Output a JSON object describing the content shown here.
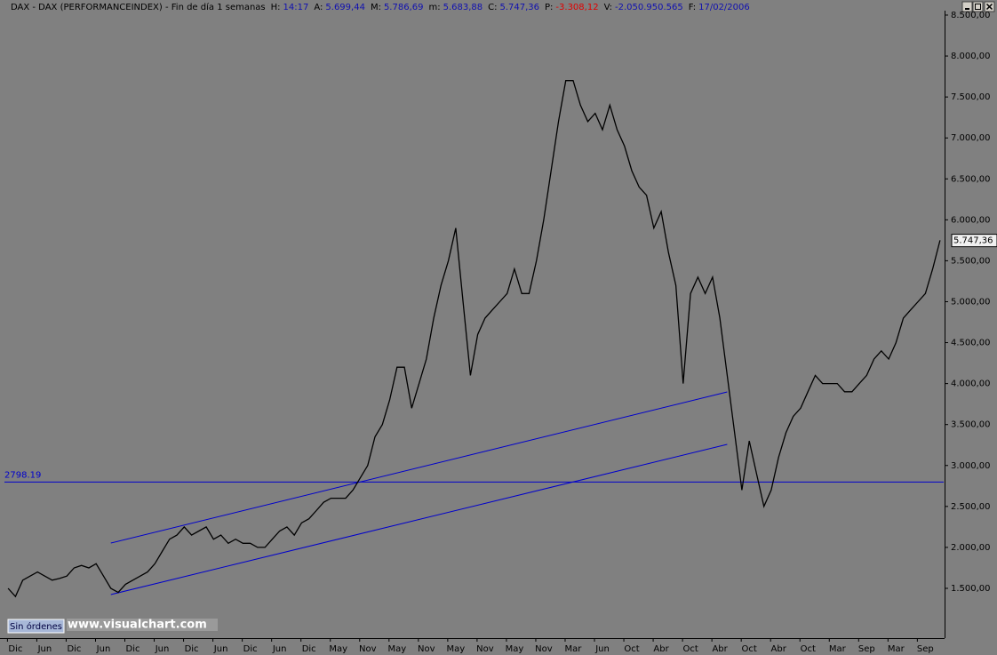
{
  "chart_data": {
    "type": "line",
    "title": "DAX - DAX (PERFORMANCEINDEX) - Fin de día 1 semanas",
    "header": [
      {
        "label": "H:",
        "value": "14:17",
        "color": "#1010b0"
      },
      {
        "label": "A:",
        "value": "5.699,44",
        "color": "#1010b0"
      },
      {
        "label": "M:",
        "value": "5.786,69",
        "color": "#1010b0"
      },
      {
        "label": "m:",
        "value": "5.683,88",
        "color": "#1010b0"
      },
      {
        "label": "C:",
        "value": "5.747,36",
        "color": "#1010b0"
      },
      {
        "label": "P:",
        "value": "-3.308,12",
        "color": "#e00000"
      },
      {
        "label": "V:",
        "value": "-2.050.950.565",
        "color": "#1010b0"
      },
      {
        "label": "F:",
        "value": "17/02/2006",
        "color": "#1010b0"
      }
    ],
    "categories": [
      null,
      "Dic",
      null,
      null,
      null,
      "Jun",
      null,
      null,
      null,
      "Dic",
      null,
      null,
      null,
      "Jun",
      null,
      null,
      null,
      "Dic",
      null,
      null,
      null,
      "Jun",
      null,
      null,
      null,
      "Dic",
      null,
      null,
      null,
      "Jun",
      null,
      null,
      null,
      "Dic",
      null,
      null,
      null,
      "Jun",
      null,
      null,
      null,
      "Dic",
      null,
      null,
      null,
      "May",
      null,
      null,
      null,
      "Nov",
      null,
      null,
      null,
      "May",
      null,
      null,
      null,
      "Nov",
      null,
      null,
      null,
      "May",
      null,
      null,
      null,
      "Nov",
      null,
      null,
      null,
      "May",
      null,
      null,
      null,
      "Nov",
      null,
      null,
      null,
      "Mar",
      null,
      null,
      null,
      "Jun",
      null,
      null,
      null,
      "Oct",
      null,
      null,
      null,
      "Abr",
      null,
      null,
      null,
      "Oct",
      null,
      null,
      null,
      "Abr",
      null,
      null,
      null,
      "Oct",
      null,
      null,
      null,
      "Abr",
      null,
      null,
      null,
      "Oct",
      null,
      null,
      null,
      "Mar",
      null,
      null,
      null,
      "Sep",
      null,
      null,
      null,
      "Mar",
      null,
      null,
      null,
      "Sep",
      null,
      null
    ],
    "series": [
      {
        "name": "DAX",
        "color": "#000000",
        "values": [
          1500,
          1400,
          1600,
          1650,
          1700,
          1650,
          1600,
          1620,
          1650,
          1750,
          1780,
          1750,
          1800,
          1650,
          1500,
          1450,
          1550,
          1600,
          1650,
          1700,
          1800,
          1950,
          2100,
          2150,
          2250,
          2150,
          2200,
          2250,
          2100,
          2150,
          2050,
          2100,
          2050,
          2050,
          2000,
          2000,
          2100,
          2200,
          2250,
          2150,
          2300,
          2350,
          2450,
          2550,
          2600,
          2600,
          2600,
          2700,
          2850,
          3000,
          3350,
          3500,
          3800,
          4200,
          4200,
          3700,
          4000,
          4300,
          4800,
          5200,
          5500,
          5900,
          5000,
          4100,
          4600,
          4800,
          4900,
          5000,
          5100,
          5400,
          5100,
          5100,
          5500,
          6000,
          6600,
          7200,
          7700,
          7700,
          7400,
          7200,
          7300,
          7100,
          7400,
          7100,
          6900,
          6600,
          6400,
          6300,
          5900,
          6100,
          5600,
          5200,
          4000,
          5100,
          5300,
          5100,
          5300,
          4800,
          4100,
          3400,
          2700,
          3300,
          2900,
          2500,
          2700,
          3100,
          3400,
          3600,
          3700,
          3900,
          4100,
          4000,
          4000,
          4000,
          3900,
          3900,
          4000,
          4100,
          4300,
          4400,
          4300,
          4500,
          4800,
          4900,
          5000,
          5100,
          5400,
          5750
        ]
      }
    ],
    "ylim": [
      903,
      8554
    ],
    "yticks": [
      {
        "value": 1500,
        "label": "1.500,00"
      },
      {
        "value": 2000,
        "label": "2.000,00"
      },
      {
        "value": 2500,
        "label": "2.500,00"
      },
      {
        "value": 3000,
        "label": "3.000,00"
      },
      {
        "value": 3500,
        "label": "3.500,00"
      },
      {
        "value": 4000,
        "label": "4.000,00"
      },
      {
        "value": 4500,
        "label": "4.500,00"
      },
      {
        "value": 5000,
        "label": "5.000,00"
      },
      {
        "value": 5500,
        "label": "5.500,00"
      },
      {
        "value": 6000,
        "label": "6.000,00"
      },
      {
        "value": 6500,
        "label": "6.500,00"
      },
      {
        "value": 7000,
        "label": "7.000,00"
      },
      {
        "value": 7500,
        "label": "7.500,00"
      },
      {
        "value": 8000,
        "label": "8.000,00"
      },
      {
        "value": 8500,
        "label": "8.500,00"
      }
    ],
    "last_price": {
      "value": 5747.36,
      "label": "5.747,36"
    },
    "hline": {
      "value": 2798.19,
      "label": "2798.19",
      "color": "#0000cc"
    },
    "trendlines": [
      {
        "x": [
          14,
          98
        ],
        "values": [
          2053,
          3898
        ],
        "color": "#0000cc"
      },
      {
        "x": [
          14,
          98
        ],
        "values": [
          1424,
          3258
        ],
        "color": "#0000cc"
      }
    ],
    "status": "Sin órdenes",
    "watermark": "www.visualchart.com"
  }
}
